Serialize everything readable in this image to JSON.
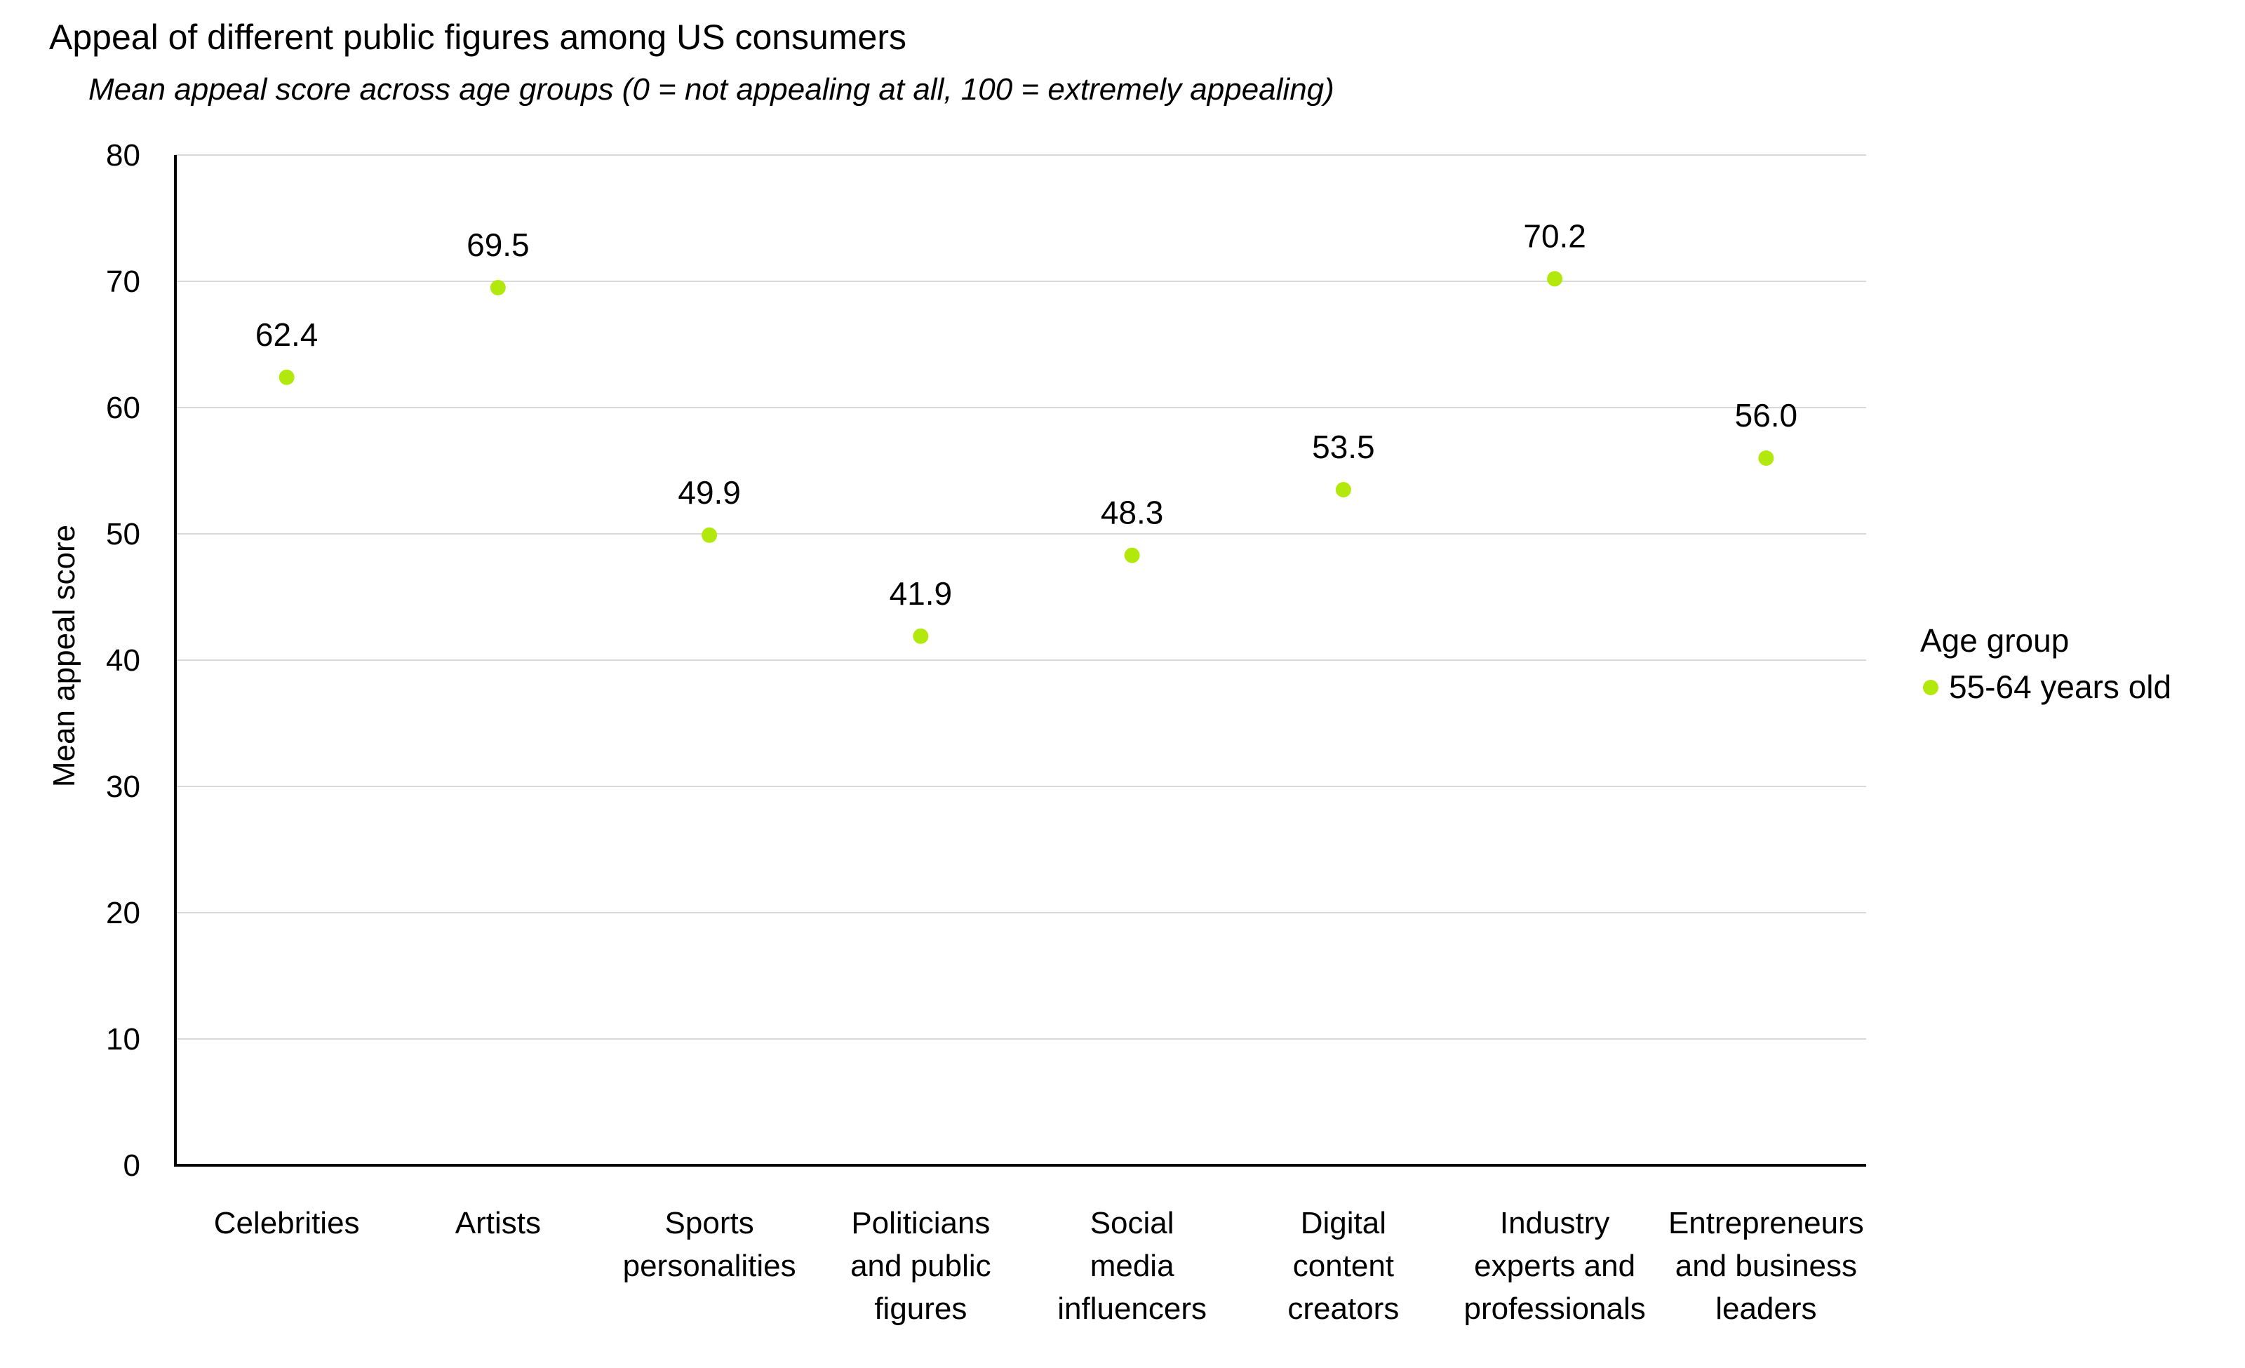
{
  "chart_data": {
    "type": "scatter",
    "title": "Appeal of different public figures among US consumers",
    "subtitle": "Mean appeal score across age groups (0 = not appealing at all, 100 = extremely appealing)",
    "xlabel": "",
    "ylabel": "Mean appeal score",
    "ylim": [
      0,
      80
    ],
    "yticks": [
      0,
      10,
      20,
      30,
      40,
      50,
      60,
      70,
      80
    ],
    "grid": true,
    "categories": [
      [
        "Celebrities"
      ],
      [
        "Artists"
      ],
      [
        "Sports",
        "personalities"
      ],
      [
        "Politicians",
        "and public",
        "figures"
      ],
      [
        "Social",
        "media",
        "influencers"
      ],
      [
        "Digital",
        "content",
        "creators"
      ],
      [
        "Industry",
        "experts and",
        "professionals"
      ],
      [
        "Entrepreneurs",
        "and business",
        "leaders"
      ]
    ],
    "series": [
      {
        "name": "55-64 years old",
        "color": "#b3e80c",
        "values": [
          62.4,
          69.5,
          49.9,
          41.9,
          48.3,
          53.5,
          70.2,
          56.0
        ]
      }
    ],
    "legend": {
      "title": "Age group",
      "position": "right"
    }
  }
}
